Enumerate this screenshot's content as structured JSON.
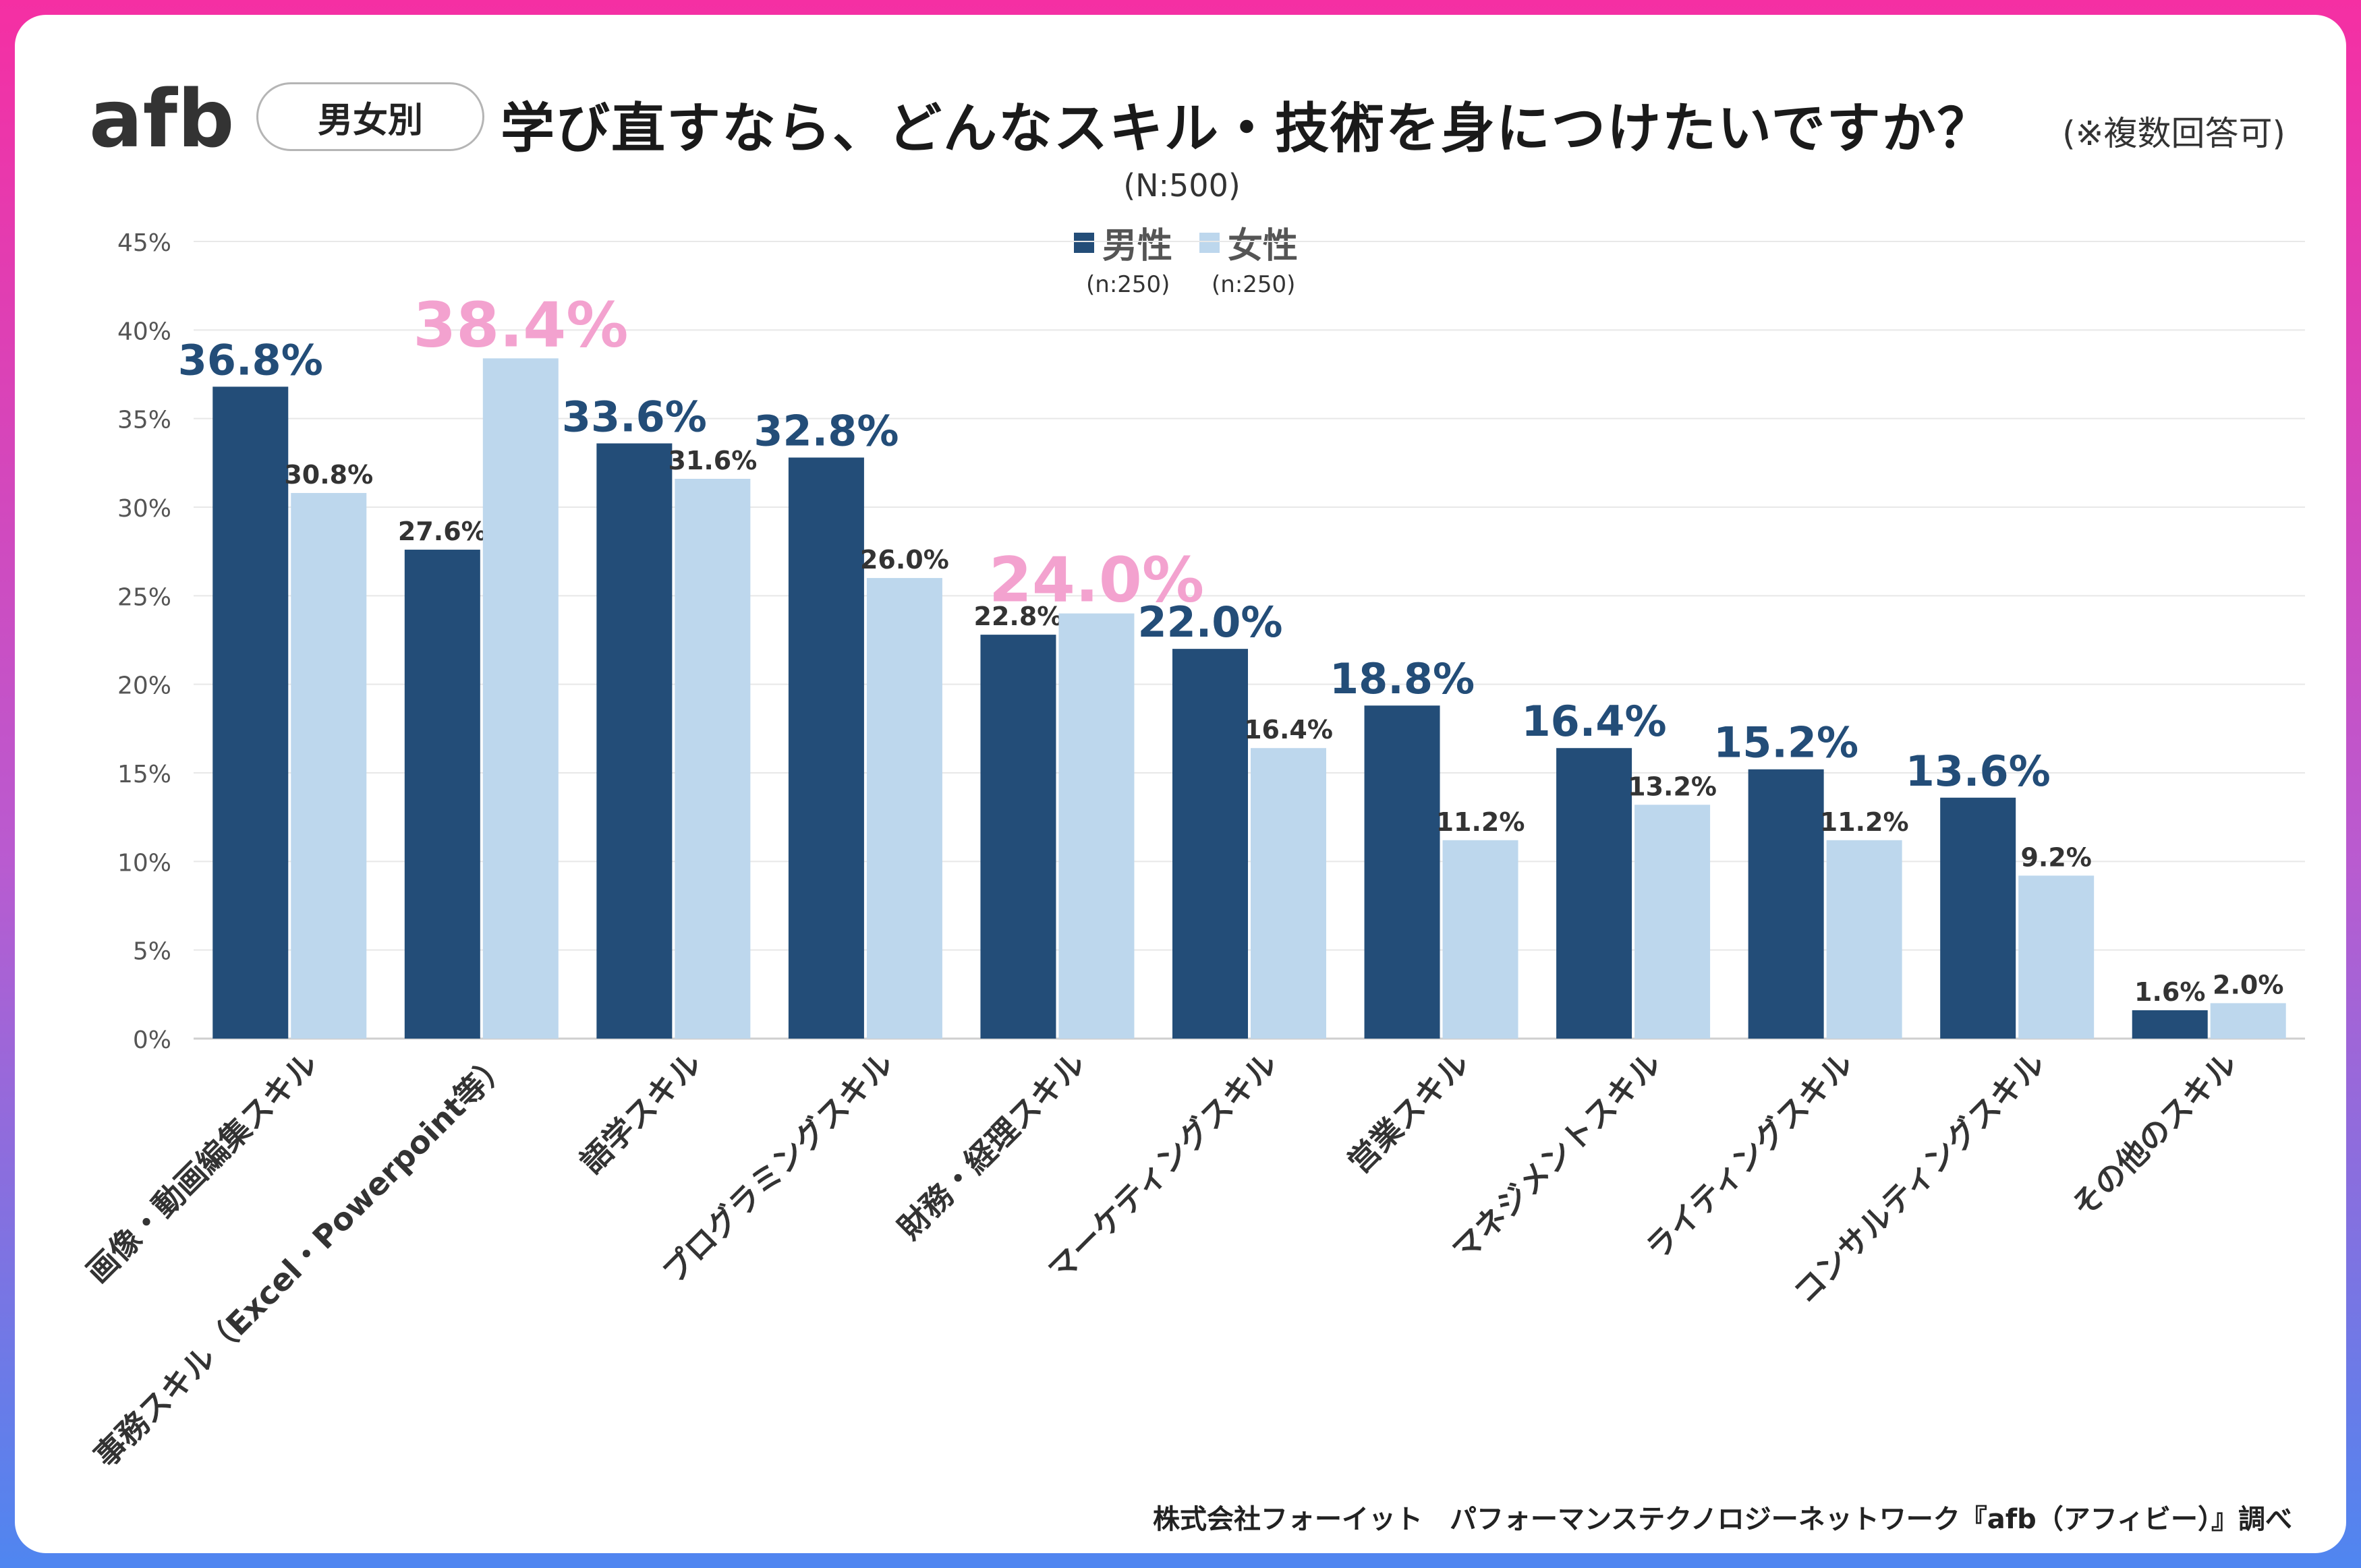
{
  "header": {
    "logo_text": "afb",
    "tag": "男女別",
    "title": "学び直すなら、どんなスキル・技術を身につけたいですか？",
    "note": "(※複数回答可)",
    "sample": "(N:500)"
  },
  "legend": {
    "male": "男性",
    "male_n": "(n:250)",
    "female": "女性",
    "female_n": "(n:250)"
  },
  "colors": {
    "male": "#234d78",
    "female": "#bdd7ed",
    "highlight": "#f3a2cf",
    "male_label": "#234d78"
  },
  "chart_data": {
    "type": "bar",
    "title": "学び直すなら、どんなスキル・技術を身につけたいですか？",
    "categories": [
      "画像・動画編集スキル",
      "事務スキル（Excel・Powerpoint等）",
      "語学スキル",
      "プログラミングスキル",
      "財務・経理スキル",
      "マーケティングスキル",
      "営業スキル",
      "マネジメントスキル",
      "ライティングスキル",
      "コンサルティングスキル",
      "その他のスキル"
    ],
    "series": [
      {
        "name": "男性",
        "values": [
          36.8,
          27.6,
          33.6,
          32.8,
          22.8,
          22.0,
          18.8,
          16.4,
          15.2,
          13.6,
          1.6
        ]
      },
      {
        "name": "女性",
        "values": [
          30.8,
          38.4,
          31.6,
          26.0,
          24.0,
          16.4,
          11.2,
          13.2,
          11.2,
          9.2,
          2.0
        ]
      }
    ],
    "value_labels": [
      [
        "36.8%",
        "27.6%",
        "33.6%",
        "32.8%",
        "22.8%",
        "22.0%",
        "18.8%",
        "16.4%",
        "15.2%",
        "13.6%",
        "1.6%"
      ],
      [
        "30.8%",
        "38.4%",
        "31.6%",
        "26.0%",
        "24.0%",
        "16.4%",
        "11.2%",
        "13.2%",
        "11.2%",
        "9.2%",
        "2.0%"
      ]
    ],
    "highlighted": [
      [
        true,
        false,
        true,
        true,
        false,
        true,
        true,
        true,
        true,
        true,
        false
      ],
      [
        false,
        true,
        false,
        false,
        true,
        false,
        false,
        false,
        false,
        false,
        false
      ]
    ],
    "ylim": [
      0,
      45
    ],
    "yticks": [
      0,
      5,
      10,
      15,
      20,
      25,
      30,
      35,
      40,
      45
    ],
    "ytick_labels": [
      "0%",
      "5%",
      "10%",
      "15%",
      "20%",
      "25%",
      "30%",
      "35%",
      "40%",
      "45%"
    ],
    "grid": true,
    "legend_position": "top-center",
    "xlabel": "",
    "ylabel": ""
  },
  "source": "株式会社フォーイット　パフォーマンステクノロジーネットワーク『afb（アフィビー）』調べ"
}
